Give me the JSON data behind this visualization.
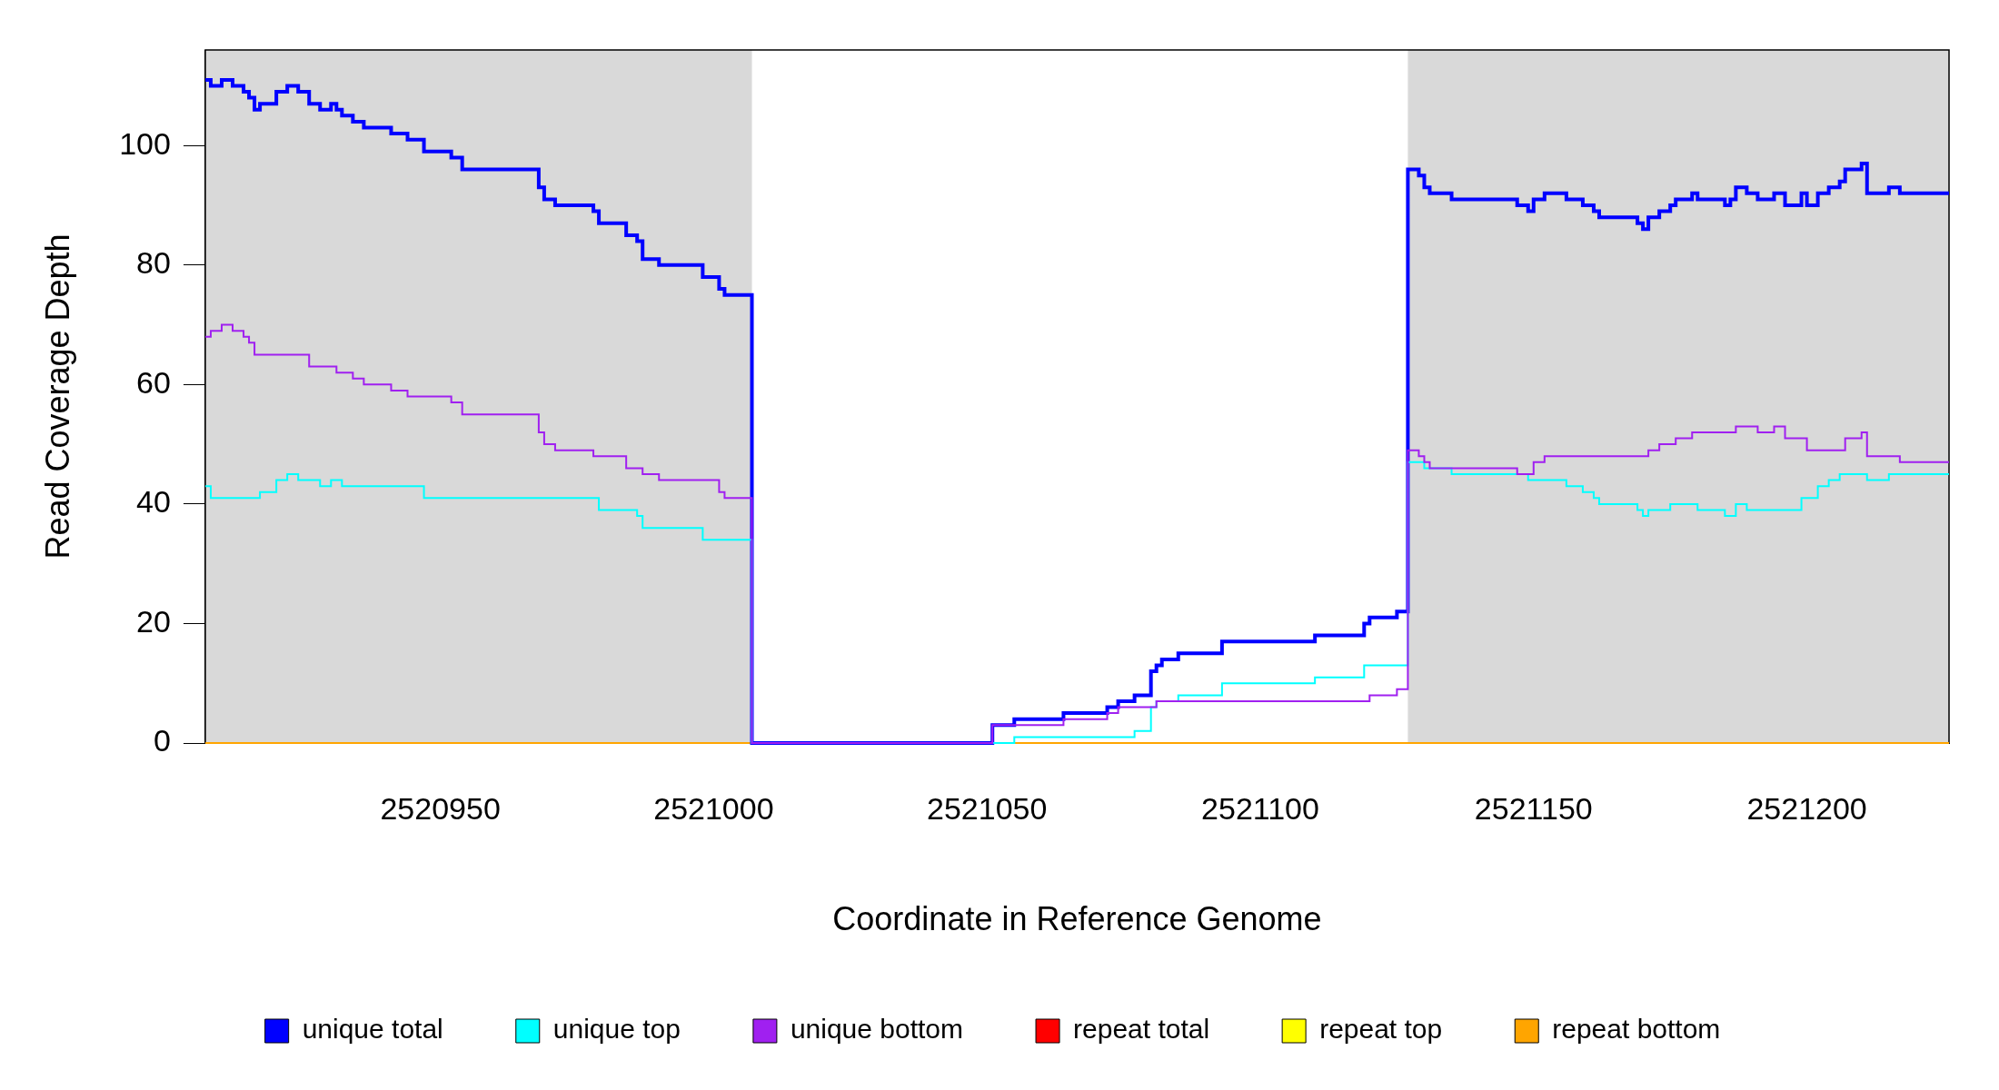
{
  "chart_data": {
    "type": "step",
    "xlabel": "Coordinate in Reference Genome",
    "ylabel": "Read Coverage Depth",
    "xlim": [
      2520907,
      2521226
    ],
    "xticks": [
      2520950,
      2521000,
      2521050,
      2521100,
      2521150,
      2521200
    ],
    "ylim": [
      0,
      116
    ],
    "yticks": [
      0,
      20,
      40,
      60,
      80,
      100
    ],
    "grid": false,
    "legend": "bottom",
    "bands": [
      {
        "axis": "x",
        "from": 2520907,
        "to": 2521007,
        "color": "#d9d9d9"
      },
      {
        "axis": "x",
        "from": 2521127,
        "to": 2521226,
        "color": "#d9d9d9"
      }
    ],
    "series": [
      {
        "name": "unique total",
        "color": "#0000ff",
        "x": [
          2520907,
          2520908,
          2520910,
          2520912,
          2520914,
          2520915,
          2520916,
          2520917,
          2520920,
          2520922,
          2520924,
          2520926,
          2520928,
          2520930,
          2520931,
          2520932,
          2520934,
          2520936,
          2520941,
          2520944,
          2520947,
          2520952,
          2520954,
          2520968,
          2520969,
          2520971,
          2520978,
          2520979,
          2520984,
          2520986,
          2520987,
          2520990,
          2520998,
          2521001,
          2521002,
          2521007,
          2521051,
          2521055,
          2521064,
          2521072,
          2521074,
          2521077,
          2521080,
          2521081,
          2521082,
          2521085,
          2521093,
          2521110,
          2521119,
          2521120,
          2521125,
          2521127,
          2521129,
          2521130,
          2521131,
          2521135,
          2521147,
          2521149,
          2521150,
          2521152,
          2521156,
          2521159,
          2521161,
          2521162,
          2521169,
          2521170,
          2521171,
          2521173,
          2521175,
          2521176,
          2521179,
          2521180,
          2521185,
          2521186,
          2521187,
          2521189,
          2521191,
          2521194,
          2521196,
          2521199,
          2521200,
          2521202,
          2521204,
          2521206,
          2521207,
          2521210,
          2521211,
          2521215,
          2521217,
          2521226
        ],
        "values": [
          111,
          110,
          111,
          110,
          109,
          108,
          106,
          107,
          109,
          110,
          109,
          107,
          106,
          107,
          106,
          105,
          104,
          103,
          102,
          101,
          99,
          98,
          96,
          93,
          91,
          90,
          89,
          87,
          85,
          84,
          81,
          80,
          78,
          76,
          75,
          0,
          3,
          4,
          5,
          6,
          7,
          8,
          12,
          13,
          14,
          15,
          17,
          18,
          20,
          21,
          22,
          96,
          95,
          93,
          92,
          91,
          90,
          89,
          91,
          92,
          91,
          90,
          89,
          88,
          87,
          86,
          88,
          89,
          90,
          91,
          92,
          91,
          90,
          91,
          93,
          92,
          91,
          92,
          90,
          92,
          90,
          92,
          93,
          94,
          96,
          97,
          92,
          93,
          92,
          92
        ]
      },
      {
        "name": "unique top",
        "color": "#00ffff",
        "x": [
          2520907,
          2520908,
          2520917,
          2520920,
          2520922,
          2520924,
          2520928,
          2520930,
          2520932,
          2520947,
          2520979,
          2520986,
          2520987,
          2520998,
          2521007,
          2521055,
          2521077,
          2521080,
          2521081,
          2521085,
          2521093,
          2521110,
          2521119,
          2521127,
          2521130,
          2521135,
          2521149,
          2521156,
          2521159,
          2521161,
          2521162,
          2521169,
          2521170,
          2521171,
          2521175,
          2521180,
          2521185,
          2521187,
          2521189,
          2521199,
          2521202,
          2521204,
          2521206,
          2521211,
          2521215,
          2521226
        ],
        "values": [
          43,
          41,
          42,
          44,
          45,
          44,
          43,
          44,
          43,
          41,
          39,
          38,
          36,
          34,
          0,
          1,
          2,
          6,
          7,
          8,
          10,
          11,
          13,
          47,
          46,
          45,
          44,
          43,
          42,
          41,
          40,
          39,
          38,
          39,
          40,
          39,
          38,
          40,
          39,
          41,
          43,
          44,
          45,
          44,
          45,
          45
        ]
      },
      {
        "name": "unique bottom",
        "color": "#a020f0",
        "x": [
          2520907,
          2520908,
          2520910,
          2520912,
          2520914,
          2520915,
          2520916,
          2520926,
          2520931,
          2520934,
          2520936,
          2520941,
          2520944,
          2520952,
          2520954,
          2520968,
          2520969,
          2520971,
          2520978,
          2520984,
          2520987,
          2520990,
          2521001,
          2521002,
          2521007,
          2521051,
          2521064,
          2521072,
          2521074,
          2521081,
          2521120,
          2521125,
          2521127,
          2521129,
          2521130,
          2521131,
          2521147,
          2521150,
          2521152,
          2521171,
          2521173,
          2521176,
          2521179,
          2521187,
          2521191,
          2521194,
          2521196,
          2521200,
          2521207,
          2521210,
          2521211,
          2521217,
          2521226
        ],
        "values": [
          68,
          69,
          70,
          69,
          68,
          67,
          65,
          63,
          62,
          61,
          60,
          59,
          58,
          57,
          55,
          52,
          50,
          49,
          48,
          46,
          45,
          44,
          42,
          41,
          0,
          3,
          4,
          5,
          6,
          7,
          8,
          9,
          49,
          48,
          47,
          46,
          45,
          47,
          48,
          49,
          50,
          51,
          52,
          53,
          52,
          53,
          51,
          49,
          51,
          52,
          48,
          47,
          47
        ]
      },
      {
        "name": "repeat total",
        "color": "#ff0000",
        "values": [
          null,
          null
        ]
      },
      {
        "name": "repeat top",
        "color": "#ffff00",
        "values": [
          null,
          null
        ]
      },
      {
        "name": "repeat bottom",
        "color": "#ffa500",
        "x": [
          2520907,
          2521226
        ],
        "values": [
          0,
          0
        ]
      }
    ]
  }
}
